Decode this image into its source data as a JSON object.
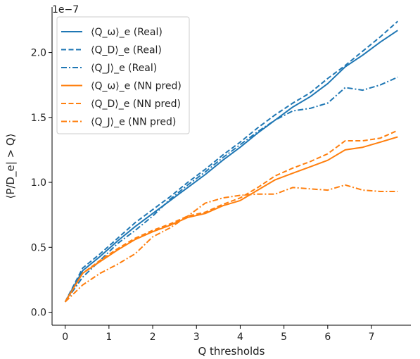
{
  "chart_data": {
    "type": "line",
    "xlabel": "Q thresholds",
    "ylabel": "⟨P/D_e| > Q⟩",
    "y_scale_label": "1e−7",
    "xlim": [
      -0.3,
      7.9
    ],
    "ylim": [
      -0.1,
      2.35
    ],
    "x_ticks": [
      0,
      1,
      2,
      3,
      4,
      5,
      6,
      7
    ],
    "y_ticks": [
      0.0,
      0.5,
      1.0,
      1.5,
      2.0
    ],
    "x_tick_labels": [
      "0",
      "1",
      "2",
      "3",
      "4",
      "5",
      "6",
      "7"
    ],
    "y_tick_labels": [
      "0.0",
      "0.5",
      "1.0",
      "1.5",
      "2.0"
    ],
    "grid": false,
    "legend_position": "top-left",
    "x": [
      0,
      0.4,
      0.8,
      1.2,
      1.6,
      2.0,
      2.4,
      2.8,
      3.2,
      3.6,
      4.0,
      4.4,
      4.8,
      5.2,
      5.6,
      6.0,
      6.4,
      6.8,
      7.2,
      7.6
    ],
    "series": [
      {
        "name": "⟨Q_ω⟩_e (Real)",
        "color": "#1f77b4",
        "dash": "solid",
        "values": [
          0.08,
          0.32,
          0.43,
          0.55,
          0.66,
          0.76,
          0.86,
          0.96,
          1.06,
          1.17,
          1.27,
          1.38,
          1.48,
          1.58,
          1.66,
          1.76,
          1.89,
          1.98,
          2.08,
          2.17
        ]
      },
      {
        "name": "⟨Q_D⟩_e (Real)",
        "color": "#1f77b4",
        "dash": "dashed",
        "values": [
          0.08,
          0.34,
          0.45,
          0.57,
          0.69,
          0.79,
          0.89,
          1.0,
          1.1,
          1.21,
          1.31,
          1.42,
          1.52,
          1.61,
          1.69,
          1.8,
          1.9,
          2.01,
          2.12,
          2.24
        ]
      },
      {
        "name": "⟨Q_J⟩_e (Real)",
        "color": "#1f77b4",
        "dash": "dashdot",
        "values": [
          0.08,
          0.27,
          0.4,
          0.53,
          0.63,
          0.74,
          0.87,
          0.98,
          1.08,
          1.19,
          1.29,
          1.39,
          1.48,
          1.55,
          1.57,
          1.61,
          1.73,
          1.71,
          1.75,
          1.81
        ]
      },
      {
        "name": "⟨Q_ω⟩_e (NN pred)",
        "color": "#ff7f0e",
        "dash": "solid",
        "values": [
          0.08,
          0.3,
          0.39,
          0.48,
          0.56,
          0.62,
          0.67,
          0.73,
          0.76,
          0.82,
          0.86,
          0.94,
          1.02,
          1.07,
          1.12,
          1.17,
          1.25,
          1.27,
          1.31,
          1.35
        ]
      },
      {
        "name": "⟨Q_D⟩_e (NN pred)",
        "color": "#ff7f0e",
        "dash": "dashed",
        "values": [
          0.08,
          0.3,
          0.4,
          0.49,
          0.57,
          0.63,
          0.68,
          0.74,
          0.77,
          0.83,
          0.88,
          0.96,
          1.05,
          1.11,
          1.16,
          1.22,
          1.32,
          1.32,
          1.34,
          1.4
        ]
      },
      {
        "name": "⟨Q_J⟩_e (NN pred)",
        "color": "#ff7f0e",
        "dash": "dashdot",
        "values": [
          0.08,
          0.21,
          0.3,
          0.37,
          0.45,
          0.58,
          0.65,
          0.74,
          0.84,
          0.88,
          0.9,
          0.91,
          0.91,
          0.96,
          0.95,
          0.94,
          0.98,
          0.94,
          0.93,
          0.93
        ]
      }
    ]
  }
}
